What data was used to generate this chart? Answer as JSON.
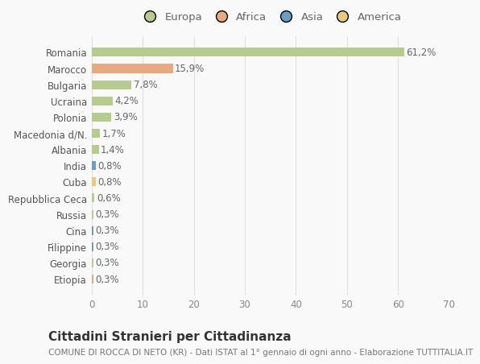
{
  "categories": [
    "Romania",
    "Marocco",
    "Bulgaria",
    "Ucraina",
    "Polonia",
    "Macedonia d/N.",
    "Albania",
    "India",
    "Cuba",
    "Repubblica Ceca",
    "Russia",
    "Cina",
    "Filippine",
    "Georgia",
    "Etiopia"
  ],
  "values": [
    61.2,
    15.9,
    7.8,
    4.2,
    3.9,
    1.7,
    1.4,
    0.8,
    0.8,
    0.6,
    0.3,
    0.3,
    0.3,
    0.3,
    0.3
  ],
  "labels": [
    "61,2%",
    "15,9%",
    "7,8%",
    "4,2%",
    "3,9%",
    "1,7%",
    "1,4%",
    "0,8%",
    "0,8%",
    "0,6%",
    "0,3%",
    "0,3%",
    "0,3%",
    "0,3%",
    "0,3%"
  ],
  "colors": [
    "#b5cc8e",
    "#e8a97e",
    "#b5cc8e",
    "#b5cc8e",
    "#b5cc8e",
    "#b5cc8e",
    "#b5cc8e",
    "#6a9ec4",
    "#e8c97e",
    "#b5cc8e",
    "#b5cc8e",
    "#6a9ec4",
    "#6a9ec4",
    "#b5cc8e",
    "#e8a97e"
  ],
  "legend_labels": [
    "Europa",
    "Africa",
    "Asia",
    "America"
  ],
  "legend_colors": [
    "#b5cc8e",
    "#e8a97e",
    "#6a9ec4",
    "#e8c97e"
  ],
  "title": "Cittadini Stranieri per Cittadinanza",
  "subtitle": "COMUNE DI ROCCA DI NETO (KR) - Dati ISTAT al 1° gennaio di ogni anno - Elaborazione TUTTITALIA.IT",
  "xlim": [
    0,
    70
  ],
  "xticks": [
    0,
    10,
    20,
    30,
    40,
    50,
    60,
    70
  ],
  "background_color": "#f9f9f9",
  "grid_color": "#e0e0e0",
  "bar_height": 0.55,
  "label_fontsize": 8.5,
  "tick_fontsize": 8.5,
  "title_fontsize": 11,
  "subtitle_fontsize": 7.5
}
